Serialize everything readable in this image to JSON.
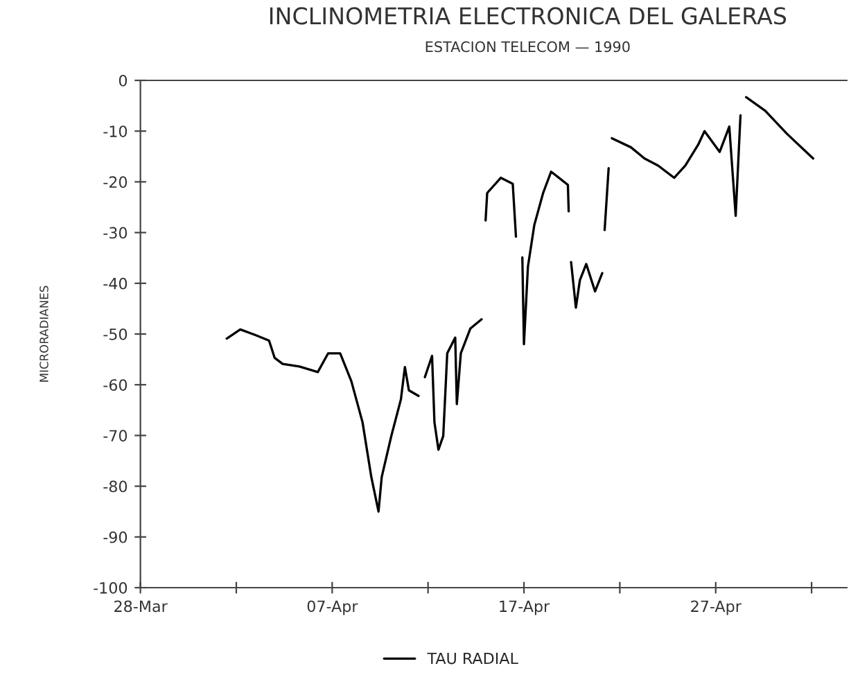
{
  "chart_data": {
    "type": "line",
    "title": "INCLINOMETRIA ELECTRONICA DEL GALERAS",
    "subtitle": "ESTACION TELECOM — 1990",
    "ylabel": "MICRORADIANES",
    "x": [
      "1990-04-01T12:00",
      "1990-04-02T05:00",
      "1990-04-03T00:00",
      "1990-04-03T17:00",
      "1990-04-04T00:00",
      "1990-04-04T10:00",
      "1990-04-05T07:00",
      "1990-04-06T06:00",
      "1990-04-06T19:00",
      "1990-04-07T10:00",
      "1990-04-08T00:00",
      "1990-04-08T14:00",
      "1990-04-09T01:00",
      "1990-04-09T10:00",
      "1990-04-09T14:00",
      "1990-04-10T02:00",
      "1990-04-10T14:00",
      "1990-04-10T19:00",
      "1990-04-11T00:00",
      "1990-04-11T12:00",
      "1990-04-11T18:00",
      "1990-04-11T20:00",
      "1990-04-12T05:00",
      "1990-04-12T08:00",
      "1990-04-12T13:00",
      "1990-04-12T19:00",
      "1990-04-13T00:00",
      "1990-04-13T10:00",
      "1990-04-13T12:00",
      "1990-04-13T17:00",
      "1990-04-14T05:00",
      "1990-04-14T19:00",
      "1990-04-14T22:00",
      "1990-04-15T00:00",
      "1990-04-15T02:00",
      "1990-04-15T19:00",
      "1990-04-16T10:00",
      "1990-04-16T14:00",
      "1990-04-16T17:00",
      "1990-04-16T22:00",
      "1990-04-17T00:00",
      "1990-04-17T05:00",
      "1990-04-17T13:00",
      "1990-04-18T00:00",
      "1990-04-18T10:00",
      "1990-04-18T19:00",
      "1990-04-19T07:00",
      "1990-04-19T08:00",
      "1990-04-19T09:00",
      "1990-04-19T11:00",
      "1990-04-19T17:00",
      "1990-04-19T22:00",
      "1990-04-20T06:00",
      "1990-04-20T17:00",
      "1990-04-21T02:00",
      "1990-04-21T03:00",
      "1990-04-21T05:00",
      "1990-04-21T10:00",
      "1990-04-21T12:00",
      "1990-04-21T14:00",
      "1990-04-22T14:00",
      "1990-04-23T07:00",
      "1990-04-24T00:00",
      "1990-04-24T20:00",
      "1990-04-25T10:00",
      "1990-04-26T02:00",
      "1990-04-26T10:00",
      "1990-04-27T05:00",
      "1990-04-27T17:00",
      "1990-04-28T01:00",
      "1990-04-28T07:00",
      "1990-04-28T10:00",
      "1990-04-28T14:00",
      "1990-04-29T14:00",
      "1990-04-30T17:00",
      "1990-05-02T02:00"
    ],
    "series": [
      {
        "name": "TAU RADIAL",
        "color": "#000000",
        "values": [
          -50.9,
          -49.1,
          -50.2,
          -51.3,
          -54.7,
          -55.9,
          -56.4,
          -57.5,
          -53.8,
          -53.8,
          -59.3,
          -67.4,
          -78.2,
          -85.0,
          -78.2,
          -70.1,
          -62.9,
          -56.5,
          -61.1,
          -62.2,
          null,
          -58.5,
          -54.3,
          -67.4,
          -72.8,
          -70.1,
          -53.8,
          -50.7,
          -63.8,
          -53.8,
          -48.9,
          -47.1,
          null,
          -27.6,
          -22.2,
          -19.2,
          -20.4,
          -30.8,
          null,
          -34.9,
          -52.0,
          -36.7,
          -28.5,
          -22.2,
          -18.0,
          -19.1,
          -20.6,
          -25.8,
          null,
          -35.8,
          -44.8,
          -39.4,
          -36.2,
          -41.6,
          -38.0,
          null,
          -29.5,
          -17.3,
          null,
          -11.4,
          -13.2,
          -15.4,
          -16.8,
          -19.2,
          -16.8,
          -12.7,
          -10.0,
          -14.1,
          -9.1,
          -26.7,
          -6.9,
          null,
          -3.3,
          -6.0,
          -10.5,
          -15.4
        ]
      }
    ],
    "xlim": [
      "1990-03-28",
      "1990-05-03T20:00"
    ],
    "xticks": [
      {
        "value": "1990-03-28",
        "label": "28-Mar"
      },
      {
        "value": "1990-04-02",
        "label": null
      },
      {
        "value": "1990-04-07",
        "label": "07-Apr"
      },
      {
        "value": "1990-04-12",
        "label": null
      },
      {
        "value": "1990-04-17",
        "label": "17-Apr"
      },
      {
        "value": "1990-04-22",
        "label": null
      },
      {
        "value": "1990-04-27",
        "label": "27-Apr"
      },
      {
        "value": "1990-05-02",
        "label": null
      }
    ],
    "ylim": [
      -100,
      0
    ],
    "yticks": [
      0,
      -10,
      -20,
      -30,
      -40,
      -50,
      -60,
      -70,
      -80,
      -90,
      -100
    ],
    "legend": "bottom",
    "grid": false,
    "marker": "none",
    "line_style": "solid"
  }
}
